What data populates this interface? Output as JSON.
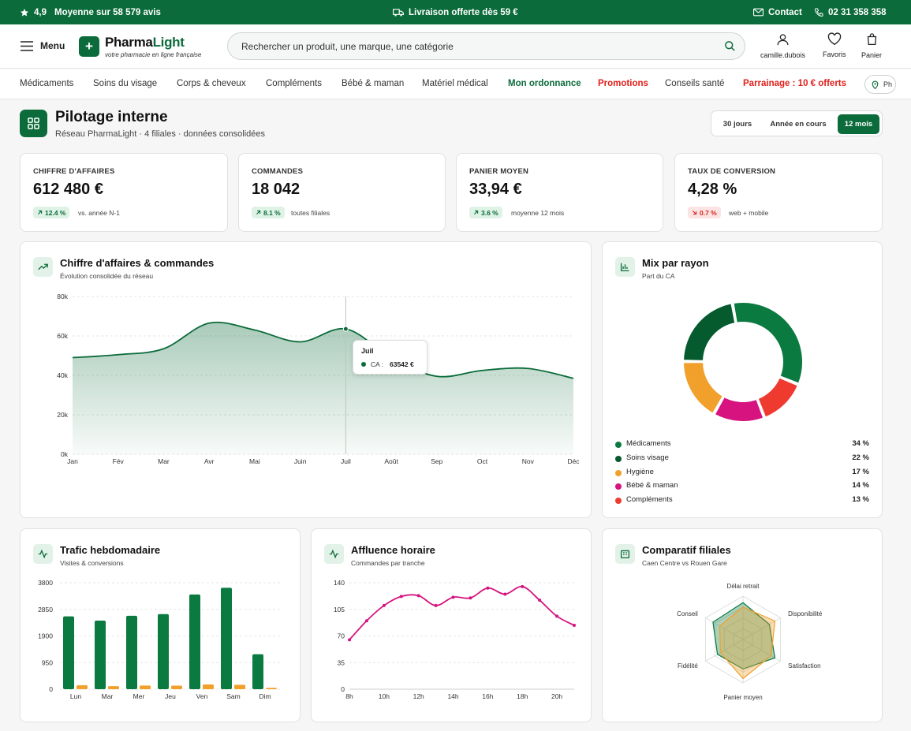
{
  "topbar": {
    "rating": "4,9",
    "rating_text": "Moyenne sur 58 579 avis",
    "shipping": "Livraison offerte dès 59 €",
    "contact": "Contact",
    "phone": "02 31 358 358"
  },
  "header": {
    "menu": "Menu",
    "logo_part1": "Pharma",
    "logo_part2": "Light",
    "logo_plus": "+",
    "tagline": "votre pharmacie en ligne française",
    "search_placeholder": "Rechercher un produit, une marque, une catégorie",
    "account": "camille.dubois",
    "favorites": "Favoris",
    "cart": "Panier"
  },
  "nav": {
    "items": [
      "Médicaments",
      "Soins du visage",
      "Corps & cheveux",
      "Compléments",
      "Bébé & maman",
      "Matériel médical",
      "Mon ordonnance",
      "Promotions",
      "Conseils santé",
      "Parrainage : 10 € offerts"
    ],
    "store": "Ph"
  },
  "page": {
    "title": "Pilotage interne",
    "subtitle": "Réseau PharmaLight · 4 filiales · données consolidées",
    "periods": [
      "30 jours",
      "Année en cours",
      "12 mois"
    ],
    "active_period": "12 mois"
  },
  "kpis": [
    {
      "label": "CHIFFRE D'AFFAIRES",
      "value": "612 480 €",
      "delta": "12.4 %",
      "trend": "up",
      "note": "vs. année N-1"
    },
    {
      "label": "COMMANDES",
      "value": "18 042",
      "delta": "8.1 %",
      "trend": "up",
      "note": "toutes filiales"
    },
    {
      "label": "PANIER MOYEN",
      "value": "33,94 €",
      "delta": "3.6 %",
      "trend": "up",
      "note": "moyenne 12 mois"
    },
    {
      "label": "TAUX DE CONVERSION",
      "value": "4,28 %",
      "delta": "0.7 %",
      "trend": "down",
      "note": "web + mobile"
    }
  ],
  "cards": {
    "revenue": {
      "title": "Chiffre d'affaires & commandes",
      "subtitle": "Évolution consolidée du réseau"
    },
    "mix": {
      "title": "Mix par rayon",
      "subtitle": "Part du CA"
    },
    "traffic": {
      "title": "Trafic hebdomadaire",
      "subtitle": "Visites & conversions"
    },
    "hourly": {
      "title": "Affluence horaire",
      "subtitle": "Commandes par tranche"
    },
    "compare": {
      "title": "Comparatif filiales",
      "subtitle": "Caen Centre vs Rouen Gare"
    }
  },
  "tooltip": {
    "month": "Juil",
    "label": "CA :",
    "value": "63542 €"
  },
  "colors": {
    "brand": "#0b6b3a",
    "accent": "#f0a02b",
    "pink": "#d6137f",
    "red": "#ef3b2f",
    "dark_green": "#055a2e"
  },
  "chart_data": [
    {
      "id": "revenue",
      "type": "area",
      "categories": [
        "Jan",
        "Fév",
        "Mar",
        "Avr",
        "Mai",
        "Juin",
        "Juil",
        "Août",
        "Sep",
        "Oct",
        "Nov",
        "Déc"
      ],
      "series": [
        {
          "name": "CA",
          "values": [
            49000,
            50500,
            53500,
            66500,
            63000,
            57000,
            63542,
            49000,
            39500,
            42500,
            43500,
            38500
          ]
        }
      ],
      "ylim": [
        0,
        80000
      ],
      "yticks": [
        "0k",
        "20k",
        "40k",
        "60k",
        "80k"
      ],
      "yticks_values": [
        0,
        20000,
        40000,
        60000,
        80000
      ]
    },
    {
      "id": "mix",
      "type": "pie",
      "labels": [
        "Médicaments",
        "Soins visage",
        "Hygiène",
        "Bébé & maman",
        "Compléments"
      ],
      "values_text": [
        "34 %",
        "22 %",
        "17 %",
        "14 %",
        "13 %"
      ],
      "values": [
        34,
        22,
        17,
        14,
        13
      ],
      "colors": [
        "#0b7a40",
        "#055a2e",
        "#f0a02b",
        "#d6137f",
        "#ef3b2f"
      ],
      "order": [
        0,
        4,
        3,
        2,
        1
      ]
    },
    {
      "id": "traffic",
      "type": "bar",
      "categories": [
        "Lun",
        "Mar",
        "Mer",
        "Jeu",
        "Ven",
        "Sam",
        "Dim"
      ],
      "series": [
        {
          "values": [
            2600,
            2450,
            2620,
            2680,
            3380,
            3620,
            1250
          ]
        },
        {
          "values": [
            140,
            110,
            130,
            125,
            170,
            160,
            50
          ]
        }
      ],
      "ylim": [
        0,
        3800
      ],
      "yticks": [
        "0",
        "950",
        "1900",
        "2850",
        "3800"
      ],
      "yticks_values": [
        0,
        950,
        1900,
        2850,
        3800
      ]
    },
    {
      "id": "hourly",
      "type": "line",
      "x": [
        8,
        9,
        10,
        11,
        12,
        13,
        14,
        15,
        16,
        17,
        18,
        19,
        20,
        21
      ],
      "xticks": [
        "8h",
        "10h",
        "12h",
        "14h",
        "16h",
        "18h",
        "20h"
      ],
      "xticks_values": [
        8,
        10,
        12,
        14,
        16,
        18,
        20
      ],
      "values": [
        65,
        90,
        110,
        122,
        123,
        110,
        121,
        120,
        133,
        125,
        135,
        117,
        96,
        84
      ],
      "ylim": [
        0,
        140
      ],
      "yticks": [
        "0",
        "35",
        "70",
        "105",
        "140"
      ],
      "yticks_values": [
        0,
        35,
        70,
        105,
        140
      ]
    },
    {
      "id": "compare",
      "type": "radar",
      "axes": [
        "Délai retrait",
        "Disponibilité",
        "Satisfaction",
        "Panier moyen",
        "Fidélité",
        "Conseil"
      ],
      "series": [
        {
          "values": [
            0.85,
            0.7,
            0.85,
            0.68,
            0.68,
            0.8
          ]
        },
        {
          "values": [
            0.75,
            0.85,
            0.75,
            0.9,
            0.6,
            0.62
          ]
        }
      ]
    }
  ]
}
